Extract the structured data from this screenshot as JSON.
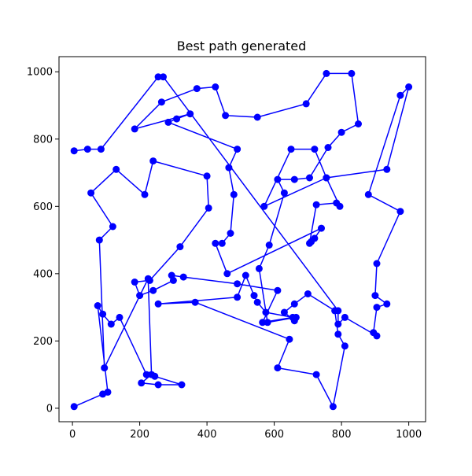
{
  "chart_data": {
    "type": "line",
    "title": "Best path generated",
    "xlabel": "",
    "ylabel": "",
    "xlim": [
      -40,
      1050
    ],
    "ylim": [
      -40,
      1045
    ],
    "xticks": [
      0,
      200,
      400,
      600,
      800,
      1000
    ],
    "yticks": [
      0,
      200,
      400,
      600,
      800,
      1000
    ],
    "xtick_labels": [
      "0",
      "200",
      "400",
      "600",
      "800",
      "1000"
    ],
    "ytick_labels": [
      "0",
      "200",
      "400",
      "600",
      "800",
      "1000"
    ],
    "grid": false,
    "legend": "none",
    "series": [
      {
        "color": "#0000ff",
        "marker": "circle",
        "x": [
          5,
          90,
          105,
          75,
          90,
          115,
          140,
          220,
          245,
          325,
          255,
          205,
          235,
          225,
          95,
          80,
          120,
          55,
          130,
          215,
          240,
          400,
          405,
          320,
          230,
          185,
          200,
          240,
          300,
          295,
          330,
          490,
          610,
          565,
          655,
          575,
          550,
          540,
          515,
          490,
          255,
          365,
          645,
          610,
          725,
          775,
          810,
          790,
          780,
          700,
          660,
          630,
          660,
          665,
          580,
          555,
          585,
          630,
          610,
          660,
          705,
          760,
          800,
          850,
          830,
          755,
          695,
          550,
          455,
          425,
          370,
          265,
          185,
          350,
          310,
          285,
          490,
          465,
          480,
          470,
          445,
          425,
          460,
          740,
          720,
          710,
          705,
          725,
          785,
          795,
          755,
          720,
          650,
          570,
          755,
          935,
          1000,
          975,
          880,
          975,
          905,
          900,
          935,
          905,
          895,
          905,
          810,
          790,
          790,
          270,
          255,
          85,
          45,
          5
        ]
      }
    ],
    "y": [
      5,
      42,
      48,
      305,
      280,
      250,
      270,
      100,
      95,
      70,
      70,
      75,
      100,
      385,
      120,
      500,
      540,
      640,
      710,
      635,
      735,
      690,
      595,
      480,
      380,
      375,
      335,
      350,
      380,
      395,
      390,
      370,
      350,
      255,
      270,
      285,
      315,
      335,
      395,
      330,
      310,
      315,
      205,
      120,
      100,
      5,
      185,
      220,
      290,
      340,
      310,
      285,
      260,
      270,
      255,
      415,
      485,
      640,
      680,
      680,
      685,
      775,
      820,
      845,
      995,
      995,
      905,
      865,
      870,
      955,
      950,
      910,
      830,
      875,
      860,
      850,
      770,
      715,
      635,
      520,
      490,
      490,
      400,
      535,
      505,
      495,
      490,
      605,
      610,
      600,
      685,
      770,
      770,
      600,
      685,
      710,
      955,
      930,
      635,
      585,
      430,
      335,
      310,
      300,
      225,
      215,
      270,
      250,
      290,
      985,
      985,
      770,
      770,
      765
    ]
  }
}
